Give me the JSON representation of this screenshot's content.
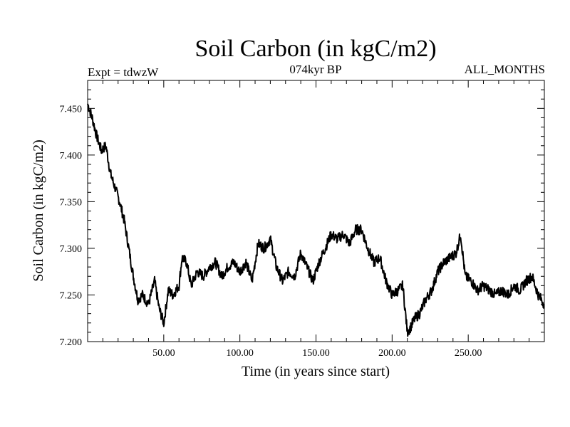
{
  "chart_data": {
    "type": "line",
    "title": "Soil Carbon (in kgC/m2)",
    "subtitle_left": "Expt = tdwzW",
    "subtitle_center": "074kyr BP",
    "subtitle_right": "ALL_MONTHS",
    "xlabel": "Time (in years since start)",
    "ylabel": "Soil Carbon (in kgC/m2)",
    "xlim": [
      0,
      300
    ],
    "ylim": [
      7.2,
      7.48
    ],
    "x_ticks": [
      {
        "value": 50,
        "label": "50.00"
      },
      {
        "value": 100,
        "label": "100.00"
      },
      {
        "value": 150,
        "label": "150.00"
      },
      {
        "value": 200,
        "label": "200.00"
      },
      {
        "value": 250,
        "label": "250.00"
      }
    ],
    "y_ticks": [
      {
        "value": 7.2,
        "label": "7.200"
      },
      {
        "value": 7.25,
        "label": "7.250"
      },
      {
        "value": 7.3,
        "label": "7.300"
      },
      {
        "value": 7.35,
        "label": "7.350"
      },
      {
        "value": 7.4,
        "label": "7.400"
      },
      {
        "value": 7.45,
        "label": "7.450"
      }
    ],
    "grid": false,
    "series": [
      {
        "color": "#000000",
        "x": [
          0,
          3,
          6,
          9,
          12,
          15,
          18,
          21,
          24,
          27,
          30,
          33,
          36,
          40,
          44,
          47,
          50,
          53,
          56,
          60,
          62,
          65,
          68,
          72,
          76,
          80,
          84,
          88,
          92,
          96,
          100,
          104,
          108,
          112,
          116,
          120,
          124,
          128,
          132,
          136,
          140,
          144,
          148,
          152,
          156,
          160,
          164,
          168,
          172,
          176,
          180,
          184,
          188,
          192,
          196,
          200,
          204,
          207,
          210,
          212,
          215,
          218,
          222,
          226,
          230,
          234,
          238,
          242,
          245,
          248,
          252,
          256,
          260,
          264,
          268,
          272,
          276,
          280,
          284,
          288,
          292,
          296,
          300
        ],
        "y": [
          7.455,
          7.44,
          7.42,
          7.405,
          7.41,
          7.38,
          7.365,
          7.35,
          7.33,
          7.3,
          7.27,
          7.245,
          7.25,
          7.24,
          7.265,
          7.235,
          7.22,
          7.255,
          7.25,
          7.26,
          7.29,
          7.285,
          7.26,
          7.275,
          7.27,
          7.28,
          7.285,
          7.27,
          7.28,
          7.285,
          7.275,
          7.285,
          7.265,
          7.305,
          7.3,
          7.31,
          7.28,
          7.265,
          7.275,
          7.27,
          7.295,
          7.28,
          7.265,
          7.285,
          7.3,
          7.315,
          7.31,
          7.315,
          7.305,
          7.32,
          7.32,
          7.3,
          7.285,
          7.29,
          7.265,
          7.25,
          7.255,
          7.26,
          7.21,
          7.215,
          7.225,
          7.23,
          7.245,
          7.255,
          7.275,
          7.285,
          7.29,
          7.295,
          7.315,
          7.27,
          7.265,
          7.255,
          7.26,
          7.255,
          7.25,
          7.255,
          7.25,
          7.26,
          7.255,
          7.265,
          7.27,
          7.25,
          7.24
        ]
      }
    ]
  }
}
